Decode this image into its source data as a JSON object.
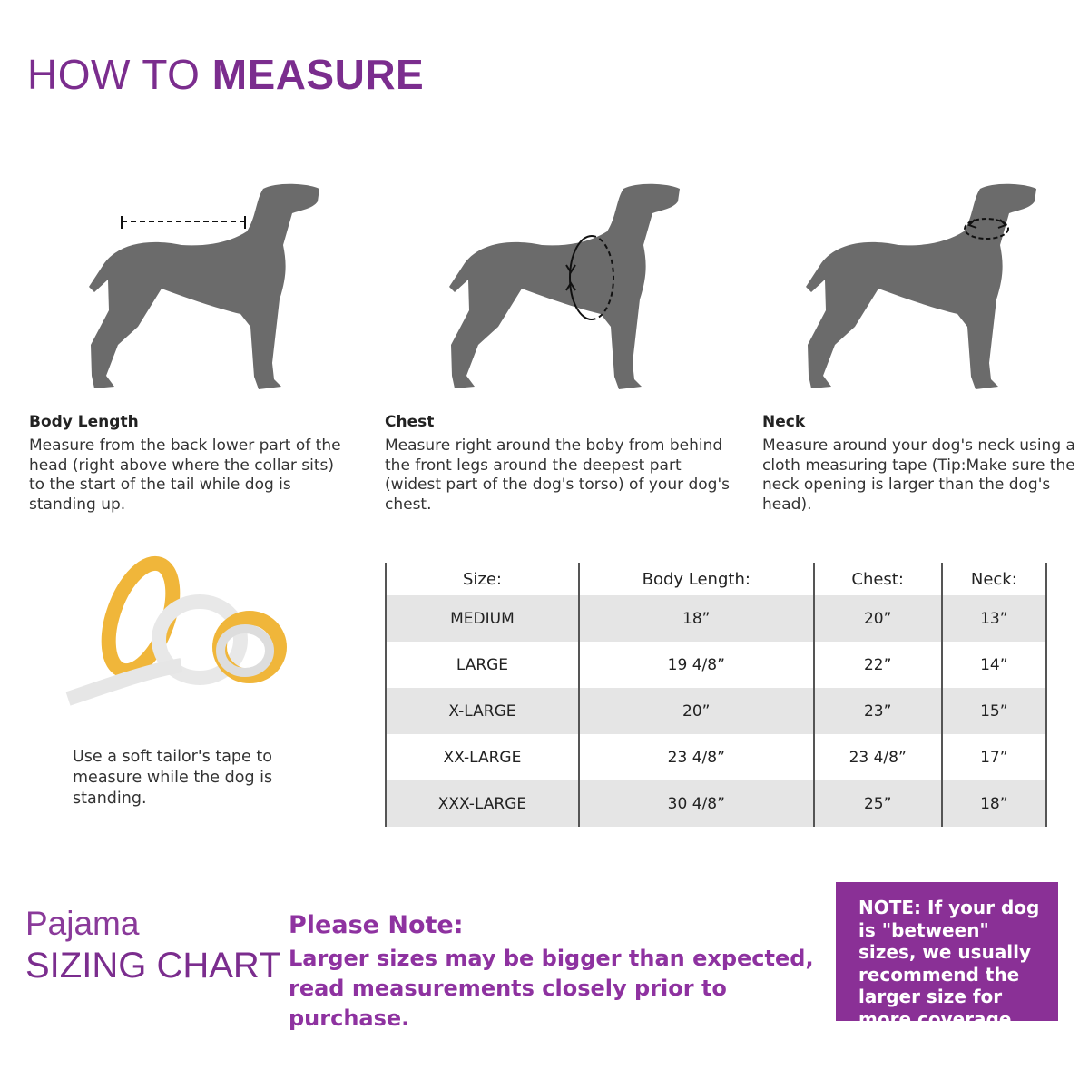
{
  "header": {
    "title_light": "HOW TO ",
    "title_bold": "MEASURE"
  },
  "measures": [
    {
      "title": "Body Length",
      "text": "Measure from the back lower part of the head (right above where the collar sits) to the start of the tail while dog is standing up."
    },
    {
      "title": "Chest",
      "text": "Measure right around the boby from behind the front legs around the deepest part (widest part of the dog's torso) of your dog's chest."
    },
    {
      "title": "Neck",
      "text": "Measure around your dog's neck using a cloth measuring tape (Tip:Make sure the neck opening is larger than the dog's head)."
    }
  ],
  "tape_caption": "Use a soft tailor's tape to measure while the dog is standing.",
  "table": {
    "headers": [
      "Size:",
      "Body Length:",
      "Chest:",
      "Neck:"
    ],
    "rows": [
      [
        "MEDIUM",
        "18”",
        "20”",
        "13”"
      ],
      [
        "LARGE",
        "19 4/8”",
        "22”",
        "14”"
      ],
      [
        "X-LARGE",
        "20”",
        "23”",
        "15”"
      ],
      [
        "XX-LARGE",
        "23 4/8”",
        "23 4/8”",
        "17”"
      ],
      [
        "XXX-LARGE",
        "30 4/8”",
        "25”",
        "18”"
      ]
    ]
  },
  "footer": {
    "pajama": "Pajama",
    "sizing_chart": "SIZING CHART",
    "note_heading": "Please Note:",
    "note_text": "Larger sizes may be bigger than expected, read measurements closely prior to purchase.",
    "box_text": "NOTE: If your dog is \"between\" sizes, we usually recommend the larger size for more coverage."
  },
  "colors": {
    "accent": "#8a3096",
    "dog": "#6b6b6b",
    "row_shade": "#e5e5e5"
  }
}
